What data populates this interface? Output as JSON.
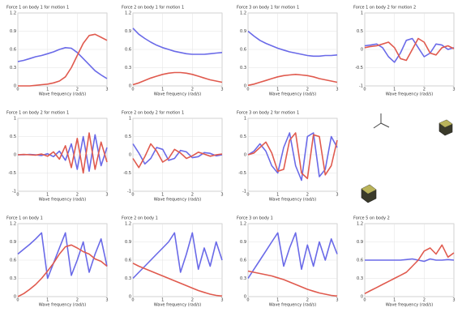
{
  "chart_data": [
    {
      "type": "line",
      "title": "Force 1 on body 1 for motion 1",
      "x_label": "Wave frequency (rad/s)",
      "x": [
        0,
        0.2,
        0.4,
        0.6,
        0.8,
        1,
        1.2,
        1.4,
        1.6,
        1.8,
        2,
        2.2,
        2.4,
        2.6,
        2.8,
        3
      ],
      "xlim": [
        0,
        3
      ],
      "xticks": [
        0,
        1,
        2,
        3
      ],
      "ylim": [
        0,
        1.2
      ],
      "yticks": [
        0,
        0.3,
        0.6,
        0.9,
        1.2
      ],
      "series": [
        {
          "color": "#6a6ae8",
          "values": [
            0.4,
            0.42,
            0.45,
            0.48,
            0.5,
            0.53,
            0.56,
            0.6,
            0.63,
            0.62,
            0.55,
            0.45,
            0.35,
            0.25,
            0.18,
            0.12
          ]
        },
        {
          "color": "#e05a4e",
          "values": [
            0,
            0,
            0,
            0.01,
            0.02,
            0.03,
            0.05,
            0.08,
            0.15,
            0.3,
            0.5,
            0.7,
            0.83,
            0.85,
            0.8,
            0.75
          ]
        }
      ]
    },
    {
      "type": "line",
      "title": "Force 2 on body 1 for motion 1",
      "x_label": "Wave frequency (rad/s)",
      "x": [
        0,
        0.2,
        0.4,
        0.6,
        0.8,
        1,
        1.2,
        1.4,
        1.6,
        1.8,
        2,
        2.2,
        2.4,
        2.6,
        2.8,
        3
      ],
      "xlim": [
        0,
        3
      ],
      "xticks": [
        0,
        1,
        2,
        3
      ],
      "ylim": [
        0,
        1.2
      ],
      "yticks": [
        0,
        0.3,
        0.6,
        0.9,
        1.2
      ],
      "series": [
        {
          "color": "#6a6ae8",
          "values": [
            0.95,
            0.85,
            0.78,
            0.72,
            0.67,
            0.63,
            0.6,
            0.57,
            0.55,
            0.53,
            0.52,
            0.52,
            0.52,
            0.53,
            0.54,
            0.55
          ]
        },
        {
          "color": "#e05a4e",
          "values": [
            0.02,
            0.05,
            0.09,
            0.13,
            0.16,
            0.19,
            0.21,
            0.22,
            0.22,
            0.21,
            0.19,
            0.16,
            0.13,
            0.1,
            0.08,
            0.06
          ]
        }
      ]
    },
    {
      "type": "line",
      "title": "Force 3 on body 1 for motion 1",
      "x_label": "Wave frequency (rad/s)",
      "x": [
        0,
        0.2,
        0.4,
        0.6,
        0.8,
        1,
        1.2,
        1.4,
        1.6,
        1.8,
        2,
        2.2,
        2.4,
        2.6,
        2.8,
        3
      ],
      "xlim": [
        0,
        3
      ],
      "xticks": [
        0,
        1,
        2,
        3
      ],
      "ylim": [
        0,
        1.2
      ],
      "yticks": [
        0,
        0.3,
        0.6,
        0.9,
        1.2
      ],
      "series": [
        {
          "color": "#6a6ae8",
          "values": [
            0.9,
            0.82,
            0.75,
            0.7,
            0.66,
            0.62,
            0.59,
            0.56,
            0.54,
            0.52,
            0.5,
            0.49,
            0.49,
            0.5,
            0.5,
            0.51
          ]
        },
        {
          "color": "#e05a4e",
          "values": [
            0.01,
            0.03,
            0.06,
            0.09,
            0.12,
            0.15,
            0.17,
            0.18,
            0.19,
            0.18,
            0.17,
            0.15,
            0.12,
            0.1,
            0.08,
            0.06
          ]
        }
      ]
    },
    {
      "type": "line",
      "title": "Force 1 on body 2 for motion 2",
      "x_label": "Wave frequency (rad/s)",
      "x": [
        0,
        0.2,
        0.4,
        0.6,
        0.8,
        1,
        1.2,
        1.4,
        1.6,
        1.8,
        2,
        2.2,
        2.4,
        2.6,
        2.8,
        3
      ],
      "xlim": [
        0,
        3
      ],
      "xticks": [
        0,
        1,
        2,
        3
      ],
      "ylim": [
        -1,
        1
      ],
      "yticks": [
        -1,
        -0.5,
        0,
        0.5,
        1
      ],
      "series": [
        {
          "color": "#6a6ae8",
          "values": [
            0.1,
            0.12,
            0.15,
            0.05,
            -0.2,
            -0.35,
            -0.1,
            0.25,
            0.3,
            0.05,
            -0.2,
            -0.1,
            0.15,
            0.12,
            0,
            0.05
          ]
        },
        {
          "color": "#e05a4e",
          "values": [
            0.05,
            0.08,
            0.1,
            0.15,
            0.2,
            0.05,
            -0.25,
            -0.3,
            0,
            0.3,
            0.2,
            -0.1,
            -0.15,
            0.05,
            0.1,
            0.02
          ]
        }
      ]
    },
    {
      "type": "line",
      "title": "Force 1 on body 2 for motion 1",
      "x_label": "Wave frequency (rad/s)",
      "x": [
        0,
        0.2,
        0.4,
        0.6,
        0.8,
        1,
        1.2,
        1.4,
        1.6,
        1.8,
        2,
        2.2,
        2.4,
        2.6,
        2.8,
        3
      ],
      "xlim": [
        0,
        3
      ],
      "xticks": [
        0,
        1,
        2,
        3
      ],
      "ylim": [
        -1,
        1
      ],
      "yticks": [
        -1,
        -0.5,
        0,
        0.5,
        1
      ],
      "series": [
        {
          "color": "#6a6ae8",
          "values": [
            0,
            0,
            0.01,
            0,
            -0.02,
            0.03,
            -0.05,
            0.1,
            -0.15,
            0.3,
            -0.4,
            0.5,
            -0.45,
            0.55,
            -0.3,
            0.2
          ]
        },
        {
          "color": "#e05a4e",
          "values": [
            0,
            0.01,
            0,
            -0.01,
            0.02,
            -0.04,
            0.08,
            -0.12,
            0.25,
            -0.35,
            0.45,
            -0.5,
            0.6,
            -0.4,
            0.35,
            -0.2
          ]
        }
      ]
    },
    {
      "type": "line",
      "title": "Force 2 on body 2 for motion 1",
      "x_label": "Wave frequency (rad/s)",
      "x": [
        0,
        0.2,
        0.4,
        0.6,
        0.8,
        1,
        1.2,
        1.4,
        1.6,
        1.8,
        2,
        2.2,
        2.4,
        2.6,
        2.8,
        3
      ],
      "xlim": [
        0,
        3
      ],
      "xticks": [
        0,
        1,
        2,
        3
      ],
      "ylim": [
        -1,
        1
      ],
      "yticks": [
        -1,
        -0.5,
        0,
        0.5,
        1
      ],
      "series": [
        {
          "color": "#6a6ae8",
          "values": [
            0.3,
            0.05,
            -0.25,
            -0.1,
            0.2,
            0.15,
            -0.15,
            -0.1,
            0.12,
            0.08,
            -0.08,
            -0.05,
            0.06,
            0.04,
            -0.03,
            0
          ]
        },
        {
          "color": "#e05a4e",
          "values": [
            -0.1,
            -0.35,
            -0.05,
            0.3,
            0.1,
            -0.2,
            -0.1,
            0.15,
            0.05,
            -0.1,
            -0.03,
            0.07,
            0.02,
            -0.04,
            0,
            0.02
          ]
        }
      ]
    },
    {
      "type": "line",
      "title": "Force 3 on body 2 for motion 1",
      "x_label": "Wave frequency (rad/s)",
      "x": [
        0,
        0.2,
        0.4,
        0.6,
        0.8,
        1,
        1.2,
        1.4,
        1.6,
        1.8,
        2,
        2.2,
        2.4,
        2.6,
        2.8,
        3
      ],
      "xlim": [
        0,
        3
      ],
      "xticks": [
        0,
        1,
        2,
        3
      ],
      "ylim": [
        -1,
        1
      ],
      "yticks": [
        -1,
        -0.5,
        0,
        0.5,
        1
      ],
      "series": [
        {
          "color": "#6a6ae8",
          "values": [
            0,
            0.1,
            0.3,
            0.1,
            -0.3,
            -0.5,
            0.2,
            0.6,
            -0.3,
            -0.7,
            0.5,
            0.6,
            -0.6,
            -0.4,
            0.5,
            0.2
          ]
        },
        {
          "color": "#e05a4e",
          "values": [
            0,
            0.05,
            0.2,
            0.35,
            0.05,
            -0.45,
            -0.4,
            0.4,
            0.6,
            -0.5,
            -0.65,
            0.55,
            0.5,
            -0.55,
            -0.3,
            0.4
          ]
        }
      ]
    },
    {
      "type": "line",
      "title": "Force 1 on body 1",
      "x_label": "Wave frequency (rad/s)",
      "x": [
        0,
        0.2,
        0.4,
        0.6,
        0.8,
        1,
        1.2,
        1.4,
        1.6,
        1.8,
        2,
        2.2,
        2.4,
        2.6,
        2.8,
        3
      ],
      "xlim": [
        0,
        3
      ],
      "xticks": [
        0,
        1,
        2,
        3
      ],
      "ylim": [
        0,
        1.2
      ],
      "yticks": [
        0,
        0.3,
        0.6,
        0.9,
        1.2
      ],
      "series": [
        {
          "color": "#6a6ae8",
          "values": [
            0.7,
            0.78,
            0.86,
            0.95,
            1.05,
            0.3,
            0.55,
            0.8,
            1.05,
            0.35,
            0.6,
            0.9,
            0.4,
            0.7,
            0.95,
            0.5
          ]
        },
        {
          "color": "#e05a4e",
          "values": [
            0,
            0.05,
            0.12,
            0.2,
            0.3,
            0.42,
            0.55,
            0.7,
            0.82,
            0.85,
            0.8,
            0.74,
            0.7,
            0.62,
            0.58,
            0.5
          ]
        }
      ]
    },
    {
      "type": "line",
      "title": "Force 2 on body 1",
      "x_label": "Wave frequency (rad/s)",
      "x": [
        0,
        0.2,
        0.4,
        0.6,
        0.8,
        1,
        1.2,
        1.4,
        1.6,
        1.8,
        2,
        2.2,
        2.4,
        2.6,
        2.8,
        3
      ],
      "xlim": [
        0,
        3
      ],
      "xticks": [
        0,
        1,
        2,
        3
      ],
      "ylim": [
        0,
        1.2
      ],
      "yticks": [
        0,
        0.3,
        0.6,
        0.9,
        1.2
      ],
      "series": [
        {
          "color": "#6a6ae8",
          "values": [
            0.3,
            0.4,
            0.5,
            0.6,
            0.7,
            0.8,
            0.9,
            1.05,
            0.4,
            0.7,
            1.05,
            0.45,
            0.8,
            0.5,
            0.9,
            0.6
          ]
        },
        {
          "color": "#e05a4e",
          "values": [
            0.55,
            0.5,
            0.46,
            0.42,
            0.38,
            0.34,
            0.3,
            0.26,
            0.22,
            0.18,
            0.14,
            0.1,
            0.07,
            0.04,
            0.02,
            0.01
          ]
        }
      ]
    },
    {
      "type": "line",
      "title": "Force 3 on body 1",
      "x_label": "Wave frequency (rad/s)",
      "x": [
        0,
        0.2,
        0.4,
        0.6,
        0.8,
        1,
        1.2,
        1.4,
        1.6,
        1.8,
        2,
        2.2,
        2.4,
        2.6,
        2.8,
        3
      ],
      "xlim": [
        0,
        3
      ],
      "xticks": [
        0,
        1,
        2,
        3
      ],
      "ylim": [
        0,
        1.2
      ],
      "yticks": [
        0,
        0.3,
        0.6,
        0.9,
        1.2
      ],
      "series": [
        {
          "color": "#6a6ae8",
          "values": [
            0.3,
            0.45,
            0.6,
            0.75,
            0.9,
            1.05,
            0.5,
            0.8,
            1.05,
            0.45,
            0.85,
            0.5,
            0.9,
            0.6,
            0.95,
            0.7
          ]
        },
        {
          "color": "#e05a4e",
          "values": [
            0.42,
            0.4,
            0.38,
            0.36,
            0.34,
            0.31,
            0.28,
            0.24,
            0.2,
            0.16,
            0.12,
            0.09,
            0.06,
            0.04,
            0.02,
            0.01
          ]
        }
      ]
    },
    {
      "type": "line",
      "title": "Force 5 on body 2",
      "x_label": "Wave frequency (rad/s)",
      "x": [
        0,
        0.2,
        0.4,
        0.6,
        0.8,
        1,
        1.2,
        1.4,
        1.6,
        1.8,
        2,
        2.2,
        2.4,
        2.6,
        2.8,
        3
      ],
      "xlim": [
        0,
        3
      ],
      "xticks": [
        0,
        1,
        2,
        3
      ],
      "ylim": [
        0,
        1.2
      ],
      "yticks": [
        0,
        0.3,
        0.6,
        0.9,
        1.2
      ],
      "series": [
        {
          "color": "#6a6ae8",
          "values": [
            0.6,
            0.6,
            0.6,
            0.6,
            0.6,
            0.6,
            0.6,
            0.61,
            0.62,
            0.6,
            0.58,
            0.62,
            0.6,
            0.6,
            0.61,
            0.6
          ]
        },
        {
          "color": "#e05a4e",
          "values": [
            0.05,
            0.1,
            0.15,
            0.2,
            0.25,
            0.3,
            0.35,
            0.4,
            0.5,
            0.6,
            0.75,
            0.8,
            0.7,
            0.85,
            0.65,
            0.72
          ]
        }
      ]
    }
  ]
}
